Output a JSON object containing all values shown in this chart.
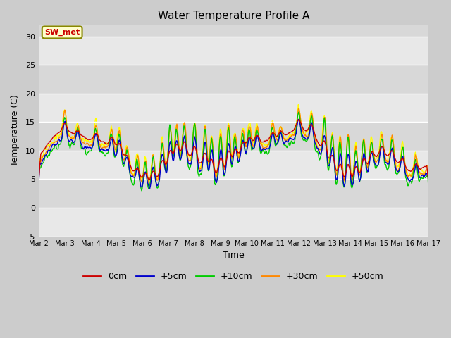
{
  "title": "Water Temperature Profile A",
  "xlabel": "Time",
  "ylabel": "Temperature (C)",
  "ylim": [
    -5,
    32
  ],
  "yticks": [
    -5,
    0,
    5,
    10,
    15,
    20,
    25,
    30
  ],
  "xlim": [
    0,
    15
  ],
  "xtick_labels": [
    "Mar 2",
    "Mar 3",
    "Mar 4",
    "Mar 5",
    "Mar 6",
    "Mar 7",
    "Mar 8",
    "Mar 9",
    "Mar 10",
    "Mar 11",
    "Mar 12",
    "Mar 13",
    "Mar 14",
    "Mar 15",
    "Mar 16",
    "Mar 17"
  ],
  "colors": {
    "0cm": "#cc0000",
    "+5cm": "#0000cc",
    "+10cm": "#00cc00",
    "+30cm": "#ff8800",
    "+50cm": "#ffff00"
  },
  "legend_label": "SW_met",
  "legend_box_color": "#ffffcc",
  "legend_box_edge": "#888800",
  "legend_text_color": "#cc0000",
  "fig_bg_color": "#cccccc",
  "plot_bg_color": "#e8e8e8",
  "band_dark_color": "#d8d8d8",
  "grid_color": "#ffffff",
  "linewidth": 1.0,
  "n_points": 720
}
